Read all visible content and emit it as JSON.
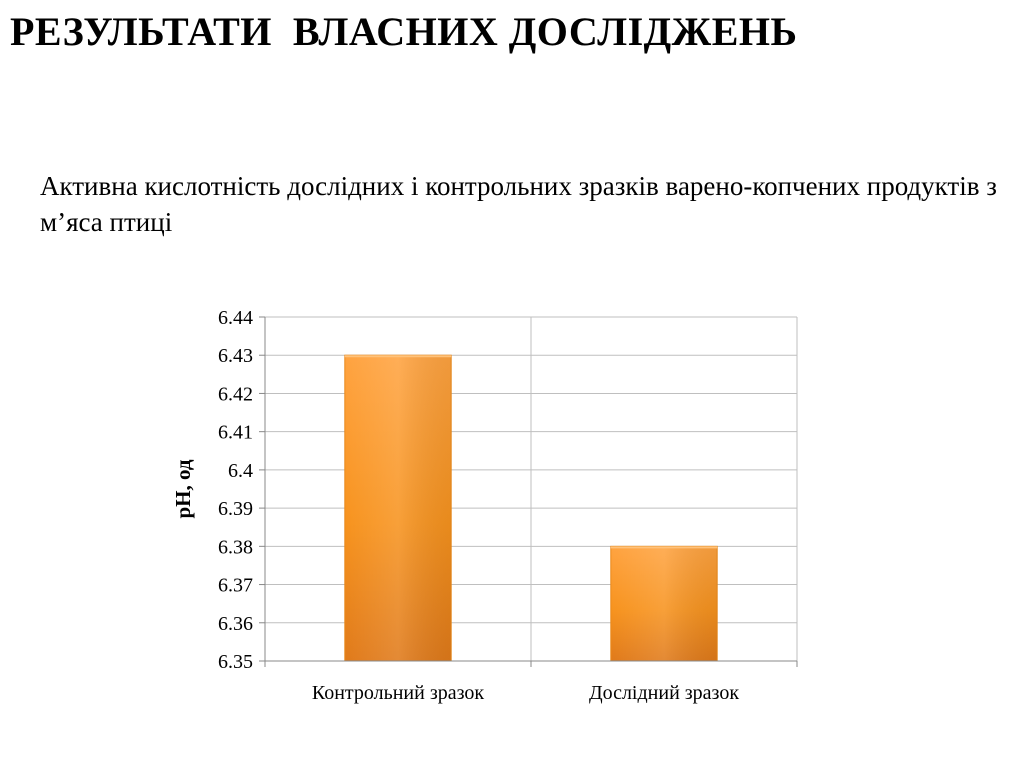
{
  "slide": {
    "title": "РЕЗУЛЬТАТИ  ВЛАСНИХ ДОСЛІДЖЕНЬ",
    "subtitle": "Активна кислотність дослідних і контрольних зразків варено-копчених продуктів з м’яса птиці"
  },
  "chart_data": {
    "type": "bar",
    "categories": [
      "Контрольний зразок",
      "Дослідний зразок"
    ],
    "values": [
      6.43,
      6.38
    ],
    "title": "",
    "xlabel": "",
    "ylabel": "pH, од",
    "ylim": [
      6.35,
      6.44
    ],
    "yticks": [
      "6.35",
      "6.36",
      "6.37",
      "6.38",
      "6.39",
      "6.4",
      "6.41",
      "6.42",
      "6.43",
      "6.44"
    ],
    "grid": true,
    "legend": "none",
    "bar_color": "#F7931E"
  }
}
